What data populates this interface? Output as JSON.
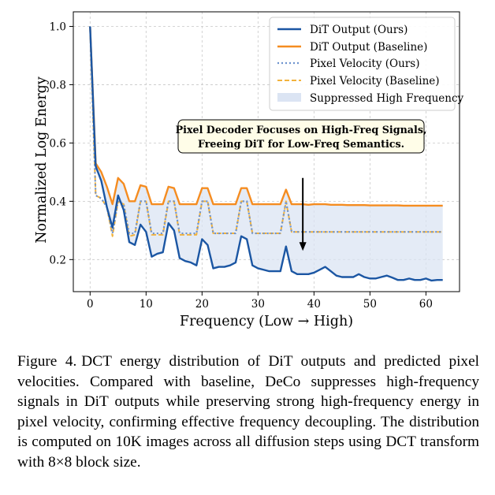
{
  "chart_data": {
    "type": "line",
    "title": "",
    "xlabel": "Frequency (Low → High)",
    "ylabel": "Normalized Log Energy",
    "xlim": [
      -3,
      66
    ],
    "ylim": [
      0.09,
      1.05
    ],
    "xticks": [
      0,
      10,
      20,
      30,
      40,
      50,
      60
    ],
    "yticks": [
      0.2,
      0.4,
      0.6,
      0.8,
      1.0
    ],
    "ytick_labels": [
      "0.2",
      "0.4",
      "0.6",
      "0.8",
      "1.0"
    ],
    "grid": true,
    "legend_position": "top-right",
    "x": [
      0,
      1,
      2,
      3,
      4,
      5,
      6,
      7,
      8,
      9,
      10,
      11,
      12,
      13,
      14,
      15,
      16,
      17,
      18,
      19,
      20,
      21,
      22,
      23,
      24,
      25,
      26,
      27,
      28,
      29,
      30,
      31,
      32,
      33,
      34,
      35,
      36,
      37,
      38,
      39,
      40,
      41,
      42,
      43,
      44,
      45,
      46,
      47,
      48,
      49,
      50,
      51,
      52,
      53,
      54,
      55,
      56,
      57,
      58,
      59,
      60,
      61,
      62,
      63
    ],
    "series": [
      {
        "name": "DiT Output (Ours)",
        "color": "#1b56a3",
        "style": "solid",
        "values": [
          1.0,
          0.52,
          0.47,
          0.38,
          0.31,
          0.42,
          0.37,
          0.26,
          0.25,
          0.32,
          0.295,
          0.21,
          0.22,
          0.225,
          0.325,
          0.3,
          0.205,
          0.195,
          0.19,
          0.18,
          0.27,
          0.25,
          0.17,
          0.175,
          0.175,
          0.18,
          0.19,
          0.28,
          0.27,
          0.18,
          0.17,
          0.165,
          0.16,
          0.16,
          0.16,
          0.245,
          0.16,
          0.15,
          0.15,
          0.15,
          0.155,
          0.165,
          0.175,
          0.16,
          0.145,
          0.14,
          0.14,
          0.14,
          0.15,
          0.14,
          0.135,
          0.135,
          0.14,
          0.145,
          0.138,
          0.13,
          0.13,
          0.135,
          0.13,
          0.13,
          0.135,
          0.128,
          0.13,
          0.13
        ]
      },
      {
        "name": "DiT Output (Baseline)",
        "color": "#f58c20",
        "style": "solid",
        "values": [
          1.0,
          0.53,
          0.5,
          0.45,
          0.39,
          0.48,
          0.46,
          0.4,
          0.4,
          0.455,
          0.45,
          0.39,
          0.39,
          0.39,
          0.45,
          0.445,
          0.39,
          0.39,
          0.39,
          0.39,
          0.445,
          0.445,
          0.39,
          0.39,
          0.39,
          0.39,
          0.39,
          0.445,
          0.445,
          0.39,
          0.39,
          0.39,
          0.39,
          0.39,
          0.39,
          0.44,
          0.39,
          0.39,
          0.39,
          0.388,
          0.39,
          0.39,
          0.39,
          0.388,
          0.388,
          0.388,
          0.387,
          0.387,
          0.387,
          0.387,
          0.386,
          0.386,
          0.386,
          0.386,
          0.386,
          0.386,
          0.385,
          0.385,
          0.385,
          0.385,
          0.385,
          0.385,
          0.385,
          0.385
        ]
      },
      {
        "name": "Pixel Velocity (Ours)",
        "color": "#6e93cf",
        "style": "dotted",
        "values": [
          1.0,
          0.42,
          0.41,
          0.38,
          0.29,
          0.4,
          0.39,
          0.29,
          0.29,
          0.4,
          0.4,
          0.29,
          0.29,
          0.29,
          0.4,
          0.4,
          0.29,
          0.29,
          0.29,
          0.29,
          0.4,
          0.4,
          0.29,
          0.29,
          0.29,
          0.29,
          0.29,
          0.4,
          0.4,
          0.29,
          0.29,
          0.29,
          0.29,
          0.29,
          0.29,
          0.4,
          0.295,
          0.295,
          0.295,
          0.295,
          0.295,
          0.295,
          0.295,
          0.295,
          0.295,
          0.295,
          0.295,
          0.295,
          0.295,
          0.295,
          0.295,
          0.295,
          0.295,
          0.295,
          0.295,
          0.295,
          0.295,
          0.295,
          0.295,
          0.295,
          0.295,
          0.295,
          0.295,
          0.295
        ]
      },
      {
        "name": "Pixel Velocity (Baseline)",
        "color": "#f2b33d",
        "style": "dashed",
        "values": [
          1.0,
          0.42,
          0.41,
          0.38,
          0.28,
          0.4,
          0.39,
          0.28,
          0.285,
          0.4,
          0.4,
          0.285,
          0.285,
          0.285,
          0.4,
          0.4,
          0.285,
          0.285,
          0.285,
          0.285,
          0.4,
          0.4,
          0.29,
          0.29,
          0.29,
          0.29,
          0.29,
          0.4,
          0.4,
          0.29,
          0.29,
          0.29,
          0.29,
          0.29,
          0.29,
          0.4,
          0.295,
          0.295,
          0.295,
          0.295,
          0.295,
          0.295,
          0.295,
          0.295,
          0.295,
          0.295,
          0.295,
          0.295,
          0.295,
          0.295,
          0.295,
          0.295,
          0.295,
          0.295,
          0.295,
          0.295,
          0.295,
          0.295,
          0.295,
          0.295,
          0.295,
          0.295,
          0.295,
          0.295
        ]
      }
    ],
    "fill_between": {
      "name": "Suppressed High Frequency",
      "color": "#dbe4f3",
      "between": [
        "DiT Output (Ours)",
        "DiT Output (Baseline)"
      ]
    },
    "annotation": {
      "lines": [
        "Pixel Decoder Focuses on High-Freq Signals,",
        "Freeing DiT for Low-Freq Semantics."
      ],
      "arrow_from": [
        38,
        0.48
      ],
      "arrow_to": [
        38,
        0.23
      ]
    }
  },
  "caption": {
    "label": "Figure 4.",
    "text": "DCT energy distribution of DiT outputs and predicted pixel velocities. Compared with baseline, DeCo suppresses high-frequency signals in DiT outputs while preserving strong high-frequency energy in pixel velocity, confirming effective frequency decoupling. The distribution is computed on 10K images across all diffusion steps using DCT transform with 8×8 block size."
  }
}
